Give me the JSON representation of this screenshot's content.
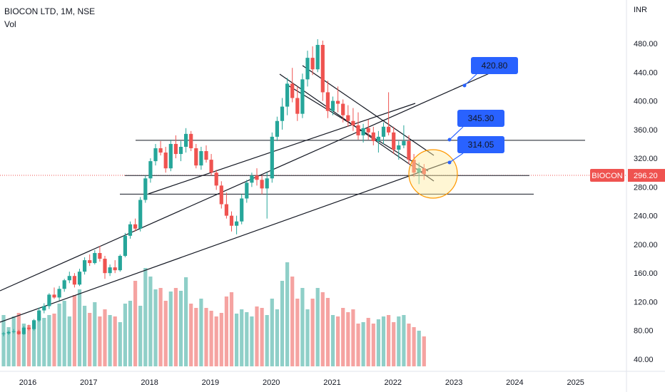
{
  "header": {
    "title": "BIOCON LTD, 1M, NSE",
    "volume_label": "Vol",
    "currency": "INR"
  },
  "colors": {
    "up": "#26a69a",
    "down": "#ef5350",
    "up_volume": "#8fcfc8",
    "down_volume": "#f5a3a1",
    "callout": "#2962ff",
    "highlight_ring": "#ff9800",
    "price_line": "#ef5350"
  },
  "chart_data": {
    "type": "candlestick",
    "symbol": "BIOCON",
    "interval": "1M",
    "exchange": "NSE",
    "last_price": 296.2,
    "last_price_label": "296.20",
    "symbol_tag": "BIOCON",
    "y_axis": {
      "min": 20,
      "max": 500,
      "ticks": [
        "480.00",
        "440.00",
        "400.00",
        "360.00",
        "320.00",
        "280.00",
        "240.00",
        "200.00",
        "160.00",
        "120.00",
        "80.00",
        "40.00"
      ]
    },
    "x_axis": {
      "ticks": [
        "2016",
        "2017",
        "2018",
        "2019",
        "2020",
        "2021",
        "2022",
        "2023",
        "2024",
        "2025"
      ]
    },
    "callouts": [
      {
        "label": "420.80",
        "value": 420.8
      },
      {
        "label": "345.30",
        "value": 345.3
      },
      {
        "label": "314.05",
        "value": 314.05
      }
    ],
    "horizontal_levels": [
      345,
      296,
      270
    ],
    "candles": [
      [
        75,
        78,
        72,
        76
      ],
      [
        76,
        80,
        74,
        78
      ],
      [
        78,
        82,
        76,
        79
      ],
      [
        79,
        81,
        74,
        75
      ],
      [
        75,
        86,
        74,
        84
      ],
      [
        84,
        88,
        80,
        82
      ],
      [
        82,
        96,
        80,
        94
      ],
      [
        94,
        112,
        92,
        108
      ],
      [
        108,
        118,
        104,
        114
      ],
      [
        114,
        132,
        110,
        130
      ],
      [
        130,
        140,
        124,
        126
      ],
      [
        126,
        142,
        122,
        138
      ],
      [
        138,
        152,
        134,
        150
      ],
      [
        150,
        162,
        146,
        156
      ],
      [
        156,
        160,
        140,
        144
      ],
      [
        144,
        166,
        142,
        162
      ],
      [
        162,
        182,
        158,
        178
      ],
      [
        178,
        186,
        170,
        174
      ],
      [
        174,
        192,
        172,
        188
      ],
      [
        188,
        198,
        176,
        180
      ],
      [
        180,
        184,
        152,
        160
      ],
      [
        160,
        172,
        156,
        168
      ],
      [
        168,
        178,
        160,
        164
      ],
      [
        164,
        186,
        162,
        184
      ],
      [
        184,
        216,
        182,
        212
      ],
      [
        212,
        232,
        208,
        228
      ],
      [
        228,
        236,
        218,
        222
      ],
      [
        222,
        266,
        218,
        262
      ],
      [
        262,
        296,
        258,
        292
      ],
      [
        292,
        320,
        286,
        316
      ],
      [
        316,
        340,
        310,
        334
      ],
      [
        334,
        344,
        324,
        328
      ],
      [
        328,
        336,
        300,
        306
      ],
      [
        306,
        346,
        302,
        340
      ],
      [
        340,
        352,
        320,
        326
      ],
      [
        326,
        344,
        316,
        336
      ],
      [
        336,
        362,
        328,
        354
      ],
      [
        354,
        358,
        330,
        334
      ],
      [
        334,
        340,
        306,
        310
      ],
      [
        310,
        336,
        304,
        330
      ],
      [
        330,
        338,
        314,
        318
      ],
      [
        318,
        326,
        296,
        300
      ],
      [
        300,
        304,
        276,
        282
      ],
      [
        282,
        288,
        250,
        256
      ],
      [
        256,
        272,
        236,
        240
      ],
      [
        240,
        246,
        218,
        226
      ],
      [
        226,
        240,
        214,
        232
      ],
      [
        232,
        270,
        228,
        264
      ],
      [
        264,
        290,
        258,
        286
      ],
      [
        286,
        300,
        280,
        296
      ],
      [
        296,
        306,
        282,
        290
      ],
      [
        290,
        296,
        270,
        278
      ],
      [
        278,
        300,
        236,
        292
      ],
      [
        292,
        356,
        286,
        350
      ],
      [
        350,
        378,
        344,
        372
      ],
      [
        372,
        404,
        360,
        392
      ],
      [
        392,
        432,
        380,
        424
      ],
      [
        424,
        446,
        398,
        404
      ],
      [
        404,
        420,
        372,
        382
      ],
      [
        382,
        438,
        376,
        430
      ],
      [
        430,
        470,
        420,
        460
      ],
      [
        460,
        476,
        436,
        444
      ],
      [
        444,
        486,
        440,
        478
      ],
      [
        478,
        484,
        400,
        412
      ],
      [
        412,
        428,
        376,
        386
      ],
      [
        386,
        406,
        380,
        400
      ],
      [
        400,
        420,
        384,
        396
      ],
      [
        396,
        402,
        370,
        380
      ],
      [
        380,
        394,
        364,
        372
      ],
      [
        372,
        390,
        358,
        366
      ],
      [
        366,
        384,
        346,
        352
      ],
      [
        352,
        368,
        342,
        362
      ],
      [
        362,
        374,
        346,
        356
      ],
      [
        356,
        364,
        338,
        344
      ],
      [
        344,
        358,
        328,
        350
      ],
      [
        350,
        370,
        340,
        364
      ],
      [
        364,
        412,
        352,
        356
      ],
      [
        356,
        364,
        326,
        332
      ],
      [
        332,
        344,
        318,
        338
      ],
      [
        338,
        366,
        334,
        344
      ],
      [
        344,
        352,
        312,
        318
      ],
      [
        318,
        326,
        294,
        300
      ],
      [
        300,
        314,
        284,
        306
      ],
      [
        306,
        312,
        290,
        298
      ]
    ],
    "volumes": [
      72,
      55,
      70,
      75,
      60,
      58,
      65,
      70,
      68,
      72,
      74,
      88,
      92,
      70,
      100,
      108,
      85,
      75,
      90,
      70,
      80,
      72,
      70,
      62,
      88,
      92,
      120,
      85,
      138,
      126,
      108,
      110,
      92,
      105,
      110,
      106,
      125,
      88,
      82,
      95,
      82,
      78,
      70,
      75,
      98,
      104,
      74,
      80,
      76,
      70,
      84,
      82,
      72,
      95,
      80,
      120,
      146,
      126,
      95,
      110,
      80,
      95,
      110,
      104,
      96,
      72,
      70,
      82,
      76,
      80,
      60,
      62,
      68,
      60,
      66,
      70,
      72,
      62,
      70,
      72,
      60,
      55,
      50,
      42
    ]
  }
}
